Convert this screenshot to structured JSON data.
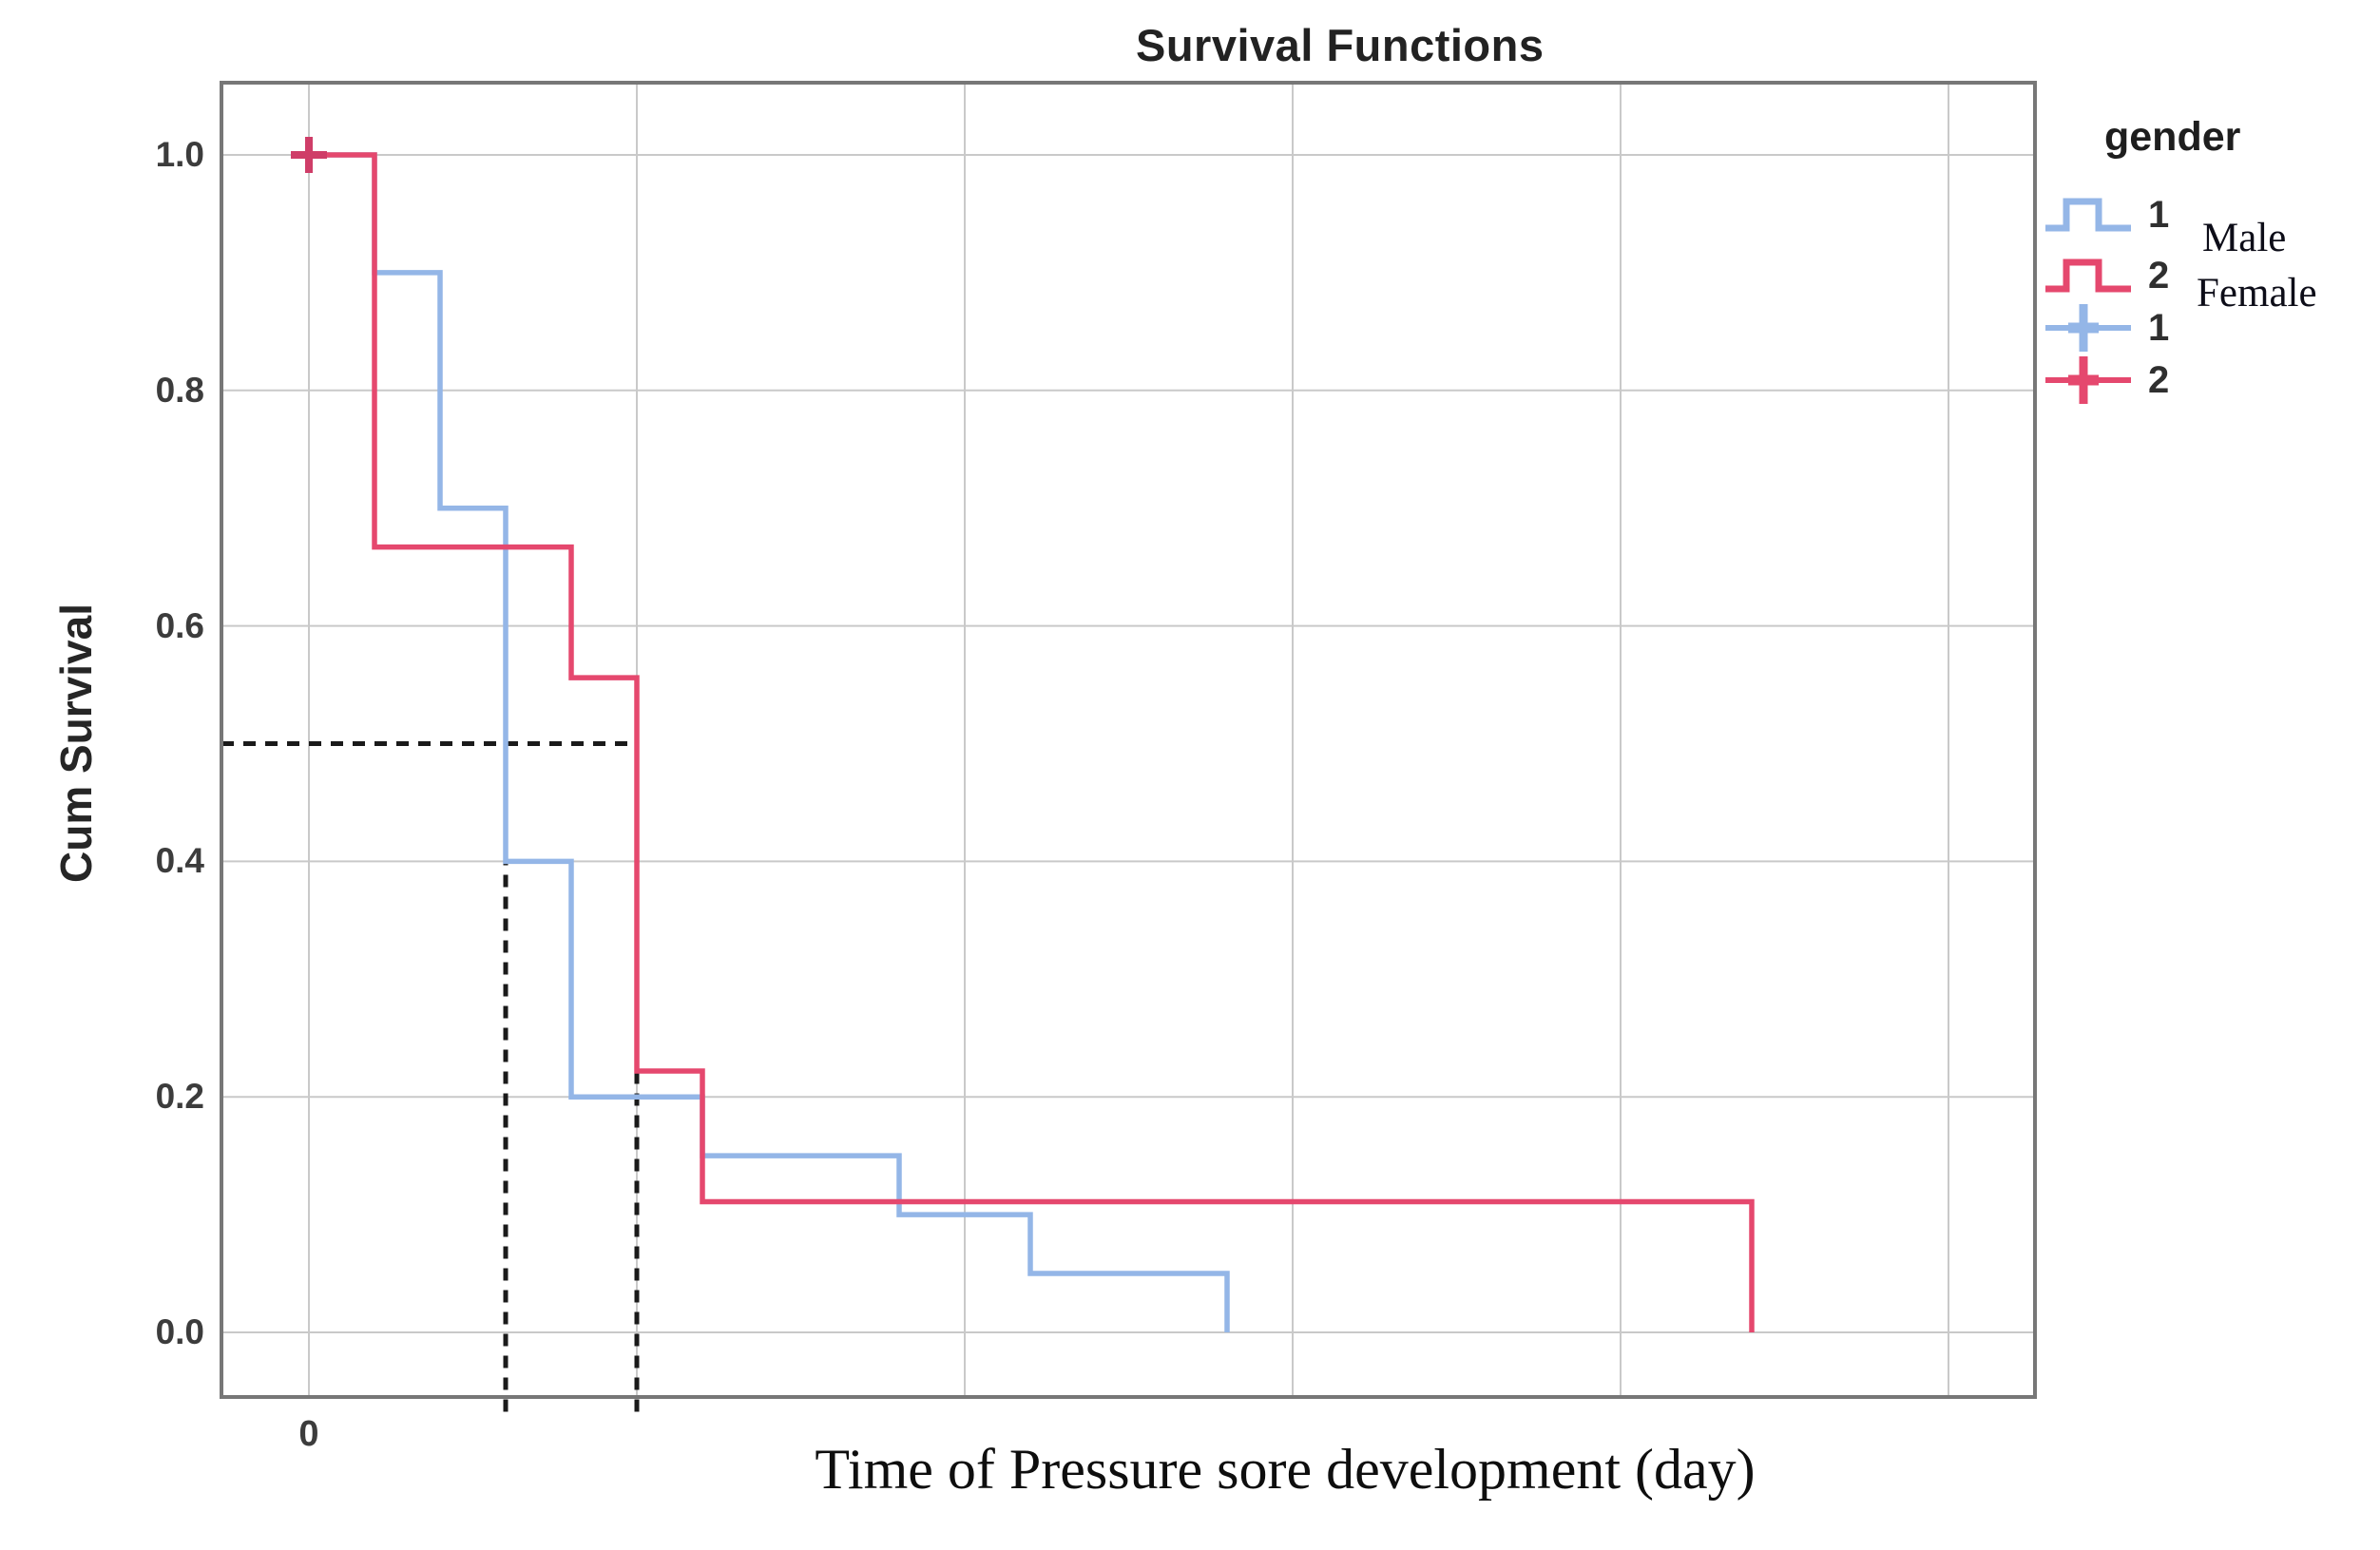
{
  "title": "Survival Functions",
  "axes": {
    "x_label": "Time of Pressure sore development (day)",
    "y_label": "Cum Survival",
    "x_tick_labels": [
      "0"
    ],
    "y_tick_labels": [
      "1.0",
      "0.8",
      "0.6",
      "0.4",
      "0.2",
      "0.0"
    ]
  },
  "legend": {
    "title": "gender",
    "items": [
      {
        "glyph": "step-line-icon",
        "color_key": "male",
        "label": "1"
      },
      {
        "glyph": "step-line-icon",
        "color_key": "female",
        "label": "2"
      },
      {
        "glyph": "censored-cross-icon",
        "color_key": "male",
        "label": "1"
      },
      {
        "glyph": "censored-cross-icon",
        "color_key": "female",
        "label": "2"
      }
    ],
    "annotations": [
      "Male",
      "Female"
    ]
  },
  "colors": {
    "male": "#94b6e7",
    "female": "#e5486e",
    "marker": "#cf3d68",
    "grid": "#c9c9c9",
    "frame": "#777777",
    "dashed": "#1a1a1a"
  },
  "chart_data": {
    "type": "line",
    "subtype": "kaplan-meier-step",
    "title": "Survival Functions",
    "xlabel": "Time of Pressure sore development (day)",
    "ylabel": "Cum Survival",
    "xlim": [
      -1.33,
      26.3
    ],
    "ylim": [
      -0.055,
      1.061
    ],
    "grid": true,
    "x_gridline_days": [
      0,
      5,
      10,
      15,
      20,
      25
    ],
    "y_gridlines": [
      1.0,
      0.8,
      0.6,
      0.4,
      0.2,
      0.0
    ],
    "x_ticks": [
      {
        "day": 0,
        "label": "0"
      }
    ],
    "legend_position": "right",
    "series": [
      {
        "name": "Male (gender=1)",
        "color_key": "male",
        "steps": [
          [
            0,
            1.0
          ],
          [
            1,
            0.9
          ],
          [
            2,
            0.7
          ],
          [
            3,
            0.4
          ],
          [
            4,
            0.2
          ],
          [
            6,
            0.15
          ],
          [
            9,
            0.1
          ],
          [
            11,
            0.05
          ],
          [
            14,
            0.0
          ]
        ]
      },
      {
        "name": "Female (gender=2)",
        "color_key": "female",
        "steps": [
          [
            0,
            1.0
          ],
          [
            1,
            0.667
          ],
          [
            4,
            0.556
          ],
          [
            5,
            0.222
          ],
          [
            6,
            0.111
          ],
          [
            22,
            0.0
          ]
        ]
      }
    ],
    "median_guides": {
      "survival_level": 0.5,
      "male_median_day": 3,
      "female_median_day": 5
    },
    "start_marker": {
      "day": 0,
      "value": 1.0,
      "shape": "plus"
    }
  }
}
